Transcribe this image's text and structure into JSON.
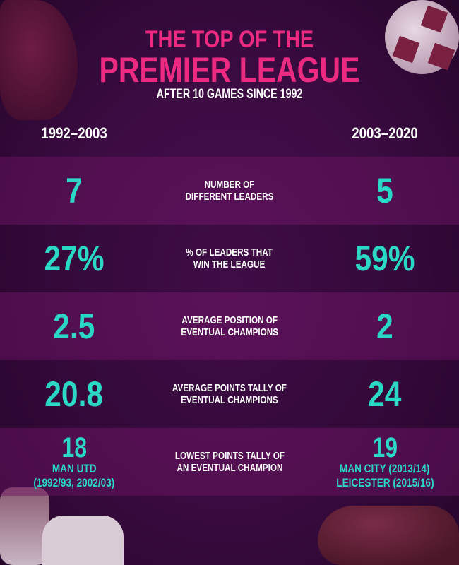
{
  "title": {
    "line1": "THE TOP OF THE",
    "line2": "PREMIER LEAGUE",
    "subtitle": "AFTER 10 GAMES SINCE 1992"
  },
  "periods": {
    "left": "1992–2003",
    "right": "2003–2020"
  },
  "colors": {
    "title": "#ec2a82",
    "values": "#2bd8c6",
    "background": "#3a0b40"
  },
  "rows": [
    {
      "label": "NUMBER OF\nDIFFERENT LEADERS",
      "left": "7",
      "right": "5"
    },
    {
      "label": "% OF LEADERS THAT\nWIN THE LEAGUE",
      "left": "27%",
      "right": "59%"
    },
    {
      "label": "AVERAGE POSITION OF\nEVENTUAL CHAMPIONS",
      "left": "2.5",
      "right": "2"
    },
    {
      "label": "AVERAGE POINTS TALLY OF\nEVENTUAL CHAMPIONS",
      "left": "20.8",
      "right": "24"
    },
    {
      "label": "LOWEST POINTS TALLY OF\nAN EVENTUAL CHAMPION",
      "left": "18",
      "right": "19",
      "left_note": [
        "MAN UTD",
        "(1992/93, 2002/03)"
      ],
      "right_note": [
        "MAN CITY (2013/14)",
        "LEICESTER (2015/16)"
      ]
    }
  ],
  "decorations": [
    "football-boot",
    "football",
    "goalkeeper-gloves",
    "football-boot"
  ]
}
